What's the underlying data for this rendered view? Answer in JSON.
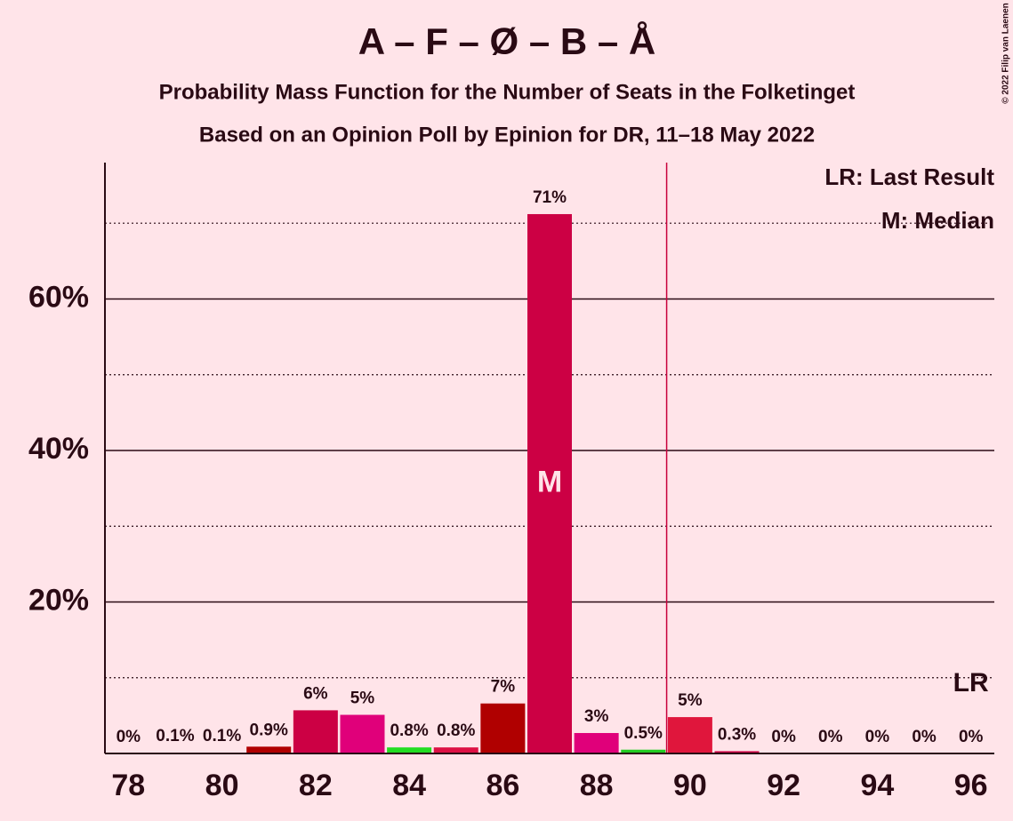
{
  "chart_data": {
    "type": "bar",
    "title": "A – F – Ø – B – Å",
    "subtitle": "Probability Mass Function for the Number of Seats in the Folketinget",
    "subtitle2": "Based on an Opinion Poll by Epinion for DR, 11–18 May 2022",
    "copyright": "© 2022 Filip van Laenen",
    "x": [
      78,
      79,
      80,
      81,
      82,
      83,
      84,
      85,
      86,
      87,
      88,
      89,
      90,
      91,
      92,
      93,
      94,
      95,
      96
    ],
    "values": [
      0,
      0.1,
      0.1,
      0.9,
      5.7,
      5.1,
      0.8,
      0.8,
      6.6,
      71.2,
      2.7,
      0.5,
      4.8,
      0.3,
      0,
      0,
      0,
      0,
      0
    ],
    "value_labels": [
      "0%",
      "0.1%",
      "0.1%",
      "0.9%",
      "6%",
      "5%",
      "0.8%",
      "0.8%",
      "7%",
      "71%",
      "3%",
      "0.5%",
      "5%",
      "0.3%",
      "0%",
      "0%",
      "0%",
      "0%",
      "0%"
    ],
    "colors": [
      "#cc0044",
      "#cc0044",
      "#cc0044",
      "#b00000",
      "#cc0044",
      "#e0007a",
      "#22dd22",
      "#dd1144",
      "#b00000",
      "#cc0044",
      "#e0007a",
      "#22cc22",
      "#e0163c",
      "#cc0044",
      "#cc0044",
      "#cc0044",
      "#cc0044",
      "#cc0044",
      "#cc0044"
    ],
    "xlim": [
      77.5,
      96.5
    ],
    "xticks": [
      78,
      80,
      82,
      84,
      86,
      88,
      90,
      92,
      94,
      96
    ],
    "ylim": [
      0,
      78
    ],
    "yticks": [
      {
        "value": 20,
        "label": "20%"
      },
      {
        "value": 40,
        "label": "40%"
      },
      {
        "value": 60,
        "label": "60%"
      }
    ],
    "minor_yticks": [
      10,
      30,
      50,
      70
    ],
    "grid": true,
    "median": 87,
    "median_label": "M",
    "last_result": 89.5,
    "last_result_label": "LR",
    "legend": [
      "LR: Last Result",
      "M: Median"
    ]
  }
}
